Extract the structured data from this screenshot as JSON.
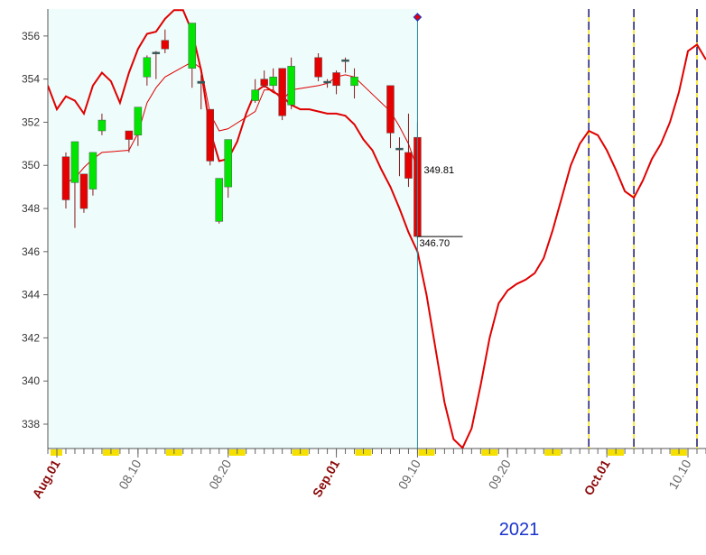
{
  "chart_data": {
    "type": "candlestick",
    "year": "2021",
    "xlim": [
      "2021-07-31",
      "2021-10-12"
    ],
    "xticks": [
      {
        "value": "2021-08-01",
        "label": "Aug.01"
      },
      {
        "value": "2021-08-10",
        "label": "08.10"
      },
      {
        "value": "2021-08-20",
        "label": "08.20"
      },
      {
        "value": "2021-09-01",
        "label": "Sep.01"
      },
      {
        "value": "2021-09-10",
        "label": "09.10"
      },
      {
        "value": "2021-09-20",
        "label": "09.20"
      },
      {
        "value": "2021-10-01",
        "label": "Oct.01"
      },
      {
        "value": "2021-10-10",
        "label": "10.10"
      }
    ],
    "ylim": [
      336.87,
      357.25
    ],
    "yticks": [
      338,
      340,
      342,
      344,
      346,
      348,
      350,
      352,
      354,
      356
    ],
    "up_color": "#00e600",
    "down_color": "#e60000",
    "candles": {
      "x": [
        "2021-08-02",
        "2021-08-03",
        "2021-08-04",
        "2021-08-05",
        "2021-08-06",
        "2021-08-09",
        "2021-08-10",
        "2021-08-11",
        "2021-08-12",
        "2021-08-13",
        "2021-08-16",
        "2021-08-17",
        "2021-08-18",
        "2021-08-19",
        "2021-08-20",
        "2021-08-23",
        "2021-08-24",
        "2021-08-25",
        "2021-08-26",
        "2021-08-27",
        "2021-08-30",
        "2021-08-31",
        "2021-09-01",
        "2021-09-02",
        "2021-09-03",
        "2021-09-07",
        "2021-09-08",
        "2021-09-09",
        "2021-09-10"
      ],
      "open": [
        350.4,
        349.2,
        349.6,
        348.9,
        351.6,
        351.6,
        351.4,
        354.1,
        355.2,
        355.8,
        354.5,
        353.9,
        352.6,
        347.4,
        349.0,
        353.0,
        354.0,
        353.7,
        354.5,
        352.8,
        355.0,
        353.85,
        354.3,
        354.85,
        353.7,
        353.7,
        350.8,
        350.6,
        351.3
      ],
      "high": [
        350.6,
        351.1,
        349.6,
        350.6,
        352.4,
        351.6,
        352.7,
        355.1,
        355.3,
        356.3,
        356.6,
        354.2,
        352.6,
        349.4,
        351.2,
        354.0,
        354.4,
        354.5,
        354.5,
        355.0,
        355.2,
        354.0,
        354.4,
        355.0,
        354.5,
        353.7,
        351.3,
        352.4,
        352.0
      ],
      "low": [
        348.0,
        347.1,
        347.8,
        348.6,
        351.4,
        350.6,
        350.9,
        353.7,
        354.0,
        355.2,
        353.6,
        352.6,
        350.0,
        347.3,
        348.5,
        352.9,
        353.6,
        353.5,
        352.1,
        352.6,
        353.9,
        353.6,
        353.3,
        354.3,
        353.1,
        350.8,
        349.5,
        349.0,
        346.6
      ],
      "close": [
        348.4,
        351.1,
        348.0,
        350.6,
        352.1,
        351.2,
        352.7,
        355.0,
        355.25,
        355.4,
        356.6,
        353.8,
        350.2,
        349.4,
        351.2,
        353.5,
        353.7,
        354.1,
        352.3,
        354.6,
        354.1,
        353.9,
        353.7,
        354.9,
        354.1,
        351.5,
        350.75,
        349.4,
        346.7
      ]
    },
    "lines": [
      {
        "color": "#e00000",
        "width": 1,
        "x": [
          "2021-08-02",
          "2021-08-03",
          "2021-08-04",
          "2021-08-05",
          "2021-08-06",
          "2021-08-09",
          "2021-08-10",
          "2021-08-11",
          "2021-08-12",
          "2021-08-13",
          "2021-08-16",
          "2021-08-17",
          "2021-08-18",
          "2021-08-19",
          "2021-08-20",
          "2021-08-23",
          "2021-08-24",
          "2021-08-25",
          "2021-08-26",
          "2021-08-27",
          "2021-08-30",
          "2021-08-31",
          "2021-09-01",
          "2021-09-02",
          "2021-09-03",
          "2021-09-07",
          "2021-09-08",
          "2021-09-09",
          "2021-09-10"
        ],
        "values": [
          349.2,
          349.4,
          349.9,
          350.3,
          350.6,
          350.7,
          351.5,
          352.9,
          353.6,
          354.1,
          354.8,
          354.5,
          352.4,
          351.6,
          351.7,
          352.5,
          353.5,
          353.5,
          353.0,
          353.5,
          353.7,
          353.8,
          354.1,
          354.2,
          354.1,
          352.5,
          351.8,
          351.0,
          349.8
        ]
      },
      {
        "color": "#e00000",
        "width": 2,
        "x": [
          "2021-07-31",
          "2021-08-01",
          "2021-08-02",
          "2021-08-03",
          "2021-08-04",
          "2021-08-05",
          "2021-08-06",
          "2021-08-07",
          "2021-08-08",
          "2021-08-09",
          "2021-08-10",
          "2021-08-11",
          "2021-08-12",
          "2021-08-13",
          "2021-08-14",
          "2021-08-15",
          "2021-08-16",
          "2021-08-17",
          "2021-08-18",
          "2021-08-19",
          "2021-08-20",
          "2021-08-21",
          "2021-08-22",
          "2021-08-23",
          "2021-08-24",
          "2021-08-25",
          "2021-08-26",
          "2021-08-27",
          "2021-08-28",
          "2021-08-29",
          "2021-08-30",
          "2021-08-31",
          "2021-09-01",
          "2021-09-02",
          "2021-09-03",
          "2021-09-04",
          "2021-09-05",
          "2021-09-06",
          "2021-09-07",
          "2021-09-08",
          "2021-09-09",
          "2021-09-10",
          "2021-09-11",
          "2021-09-12",
          "2021-09-13",
          "2021-09-14",
          "2021-09-15",
          "2021-09-16",
          "2021-09-17",
          "2021-09-18",
          "2021-09-19",
          "2021-09-20",
          "2021-09-21",
          "2021-09-22",
          "2021-09-23",
          "2021-09-24",
          "2021-09-25",
          "2021-09-26",
          "2021-09-27",
          "2021-09-28",
          "2021-09-29",
          "2021-09-30",
          "2021-10-01",
          "2021-10-02",
          "2021-10-03",
          "2021-10-04",
          "2021-10-05",
          "2021-10-06",
          "2021-10-07",
          "2021-10-08",
          "2021-10-09",
          "2021-10-10",
          "2021-10-11",
          "2021-10-12"
        ],
        "values": [
          353.7,
          352.6,
          353.2,
          353.0,
          352.4,
          353.7,
          354.3,
          353.9,
          352.9,
          354.3,
          355.4,
          356.1,
          356.2,
          356.8,
          357.2,
          357.2,
          356.2,
          354.4,
          351.6,
          350.2,
          350.3,
          351.1,
          352.4,
          353.4,
          353.7,
          353.4,
          353.2,
          352.8,
          352.6,
          352.6,
          352.5,
          352.4,
          352.4,
          352.3,
          351.9,
          351.2,
          350.7,
          349.8,
          349.0,
          348.0,
          346.9,
          346.0,
          344.0,
          341.5,
          339.0,
          337.3,
          336.9,
          337.8,
          339.8,
          342.0,
          343.6,
          344.2,
          344.5,
          344.7,
          345.0,
          345.7,
          347.0,
          348.5,
          350.0,
          351.0,
          351.6,
          351.4,
          350.7,
          349.8,
          348.8,
          348.5,
          349.3,
          350.3,
          351.0,
          352.0,
          353.4,
          355.3,
          355.6,
          354.9
        ]
      }
    ],
    "current_date": "2021-09-10",
    "marker_dates": [
      "2021-09-29",
      "2021-10-04",
      "2021-10-11"
    ],
    "price_labels": [
      349.81,
      {
        "value": 346.7,
        "label": "346.70"
      }
    ]
  }
}
